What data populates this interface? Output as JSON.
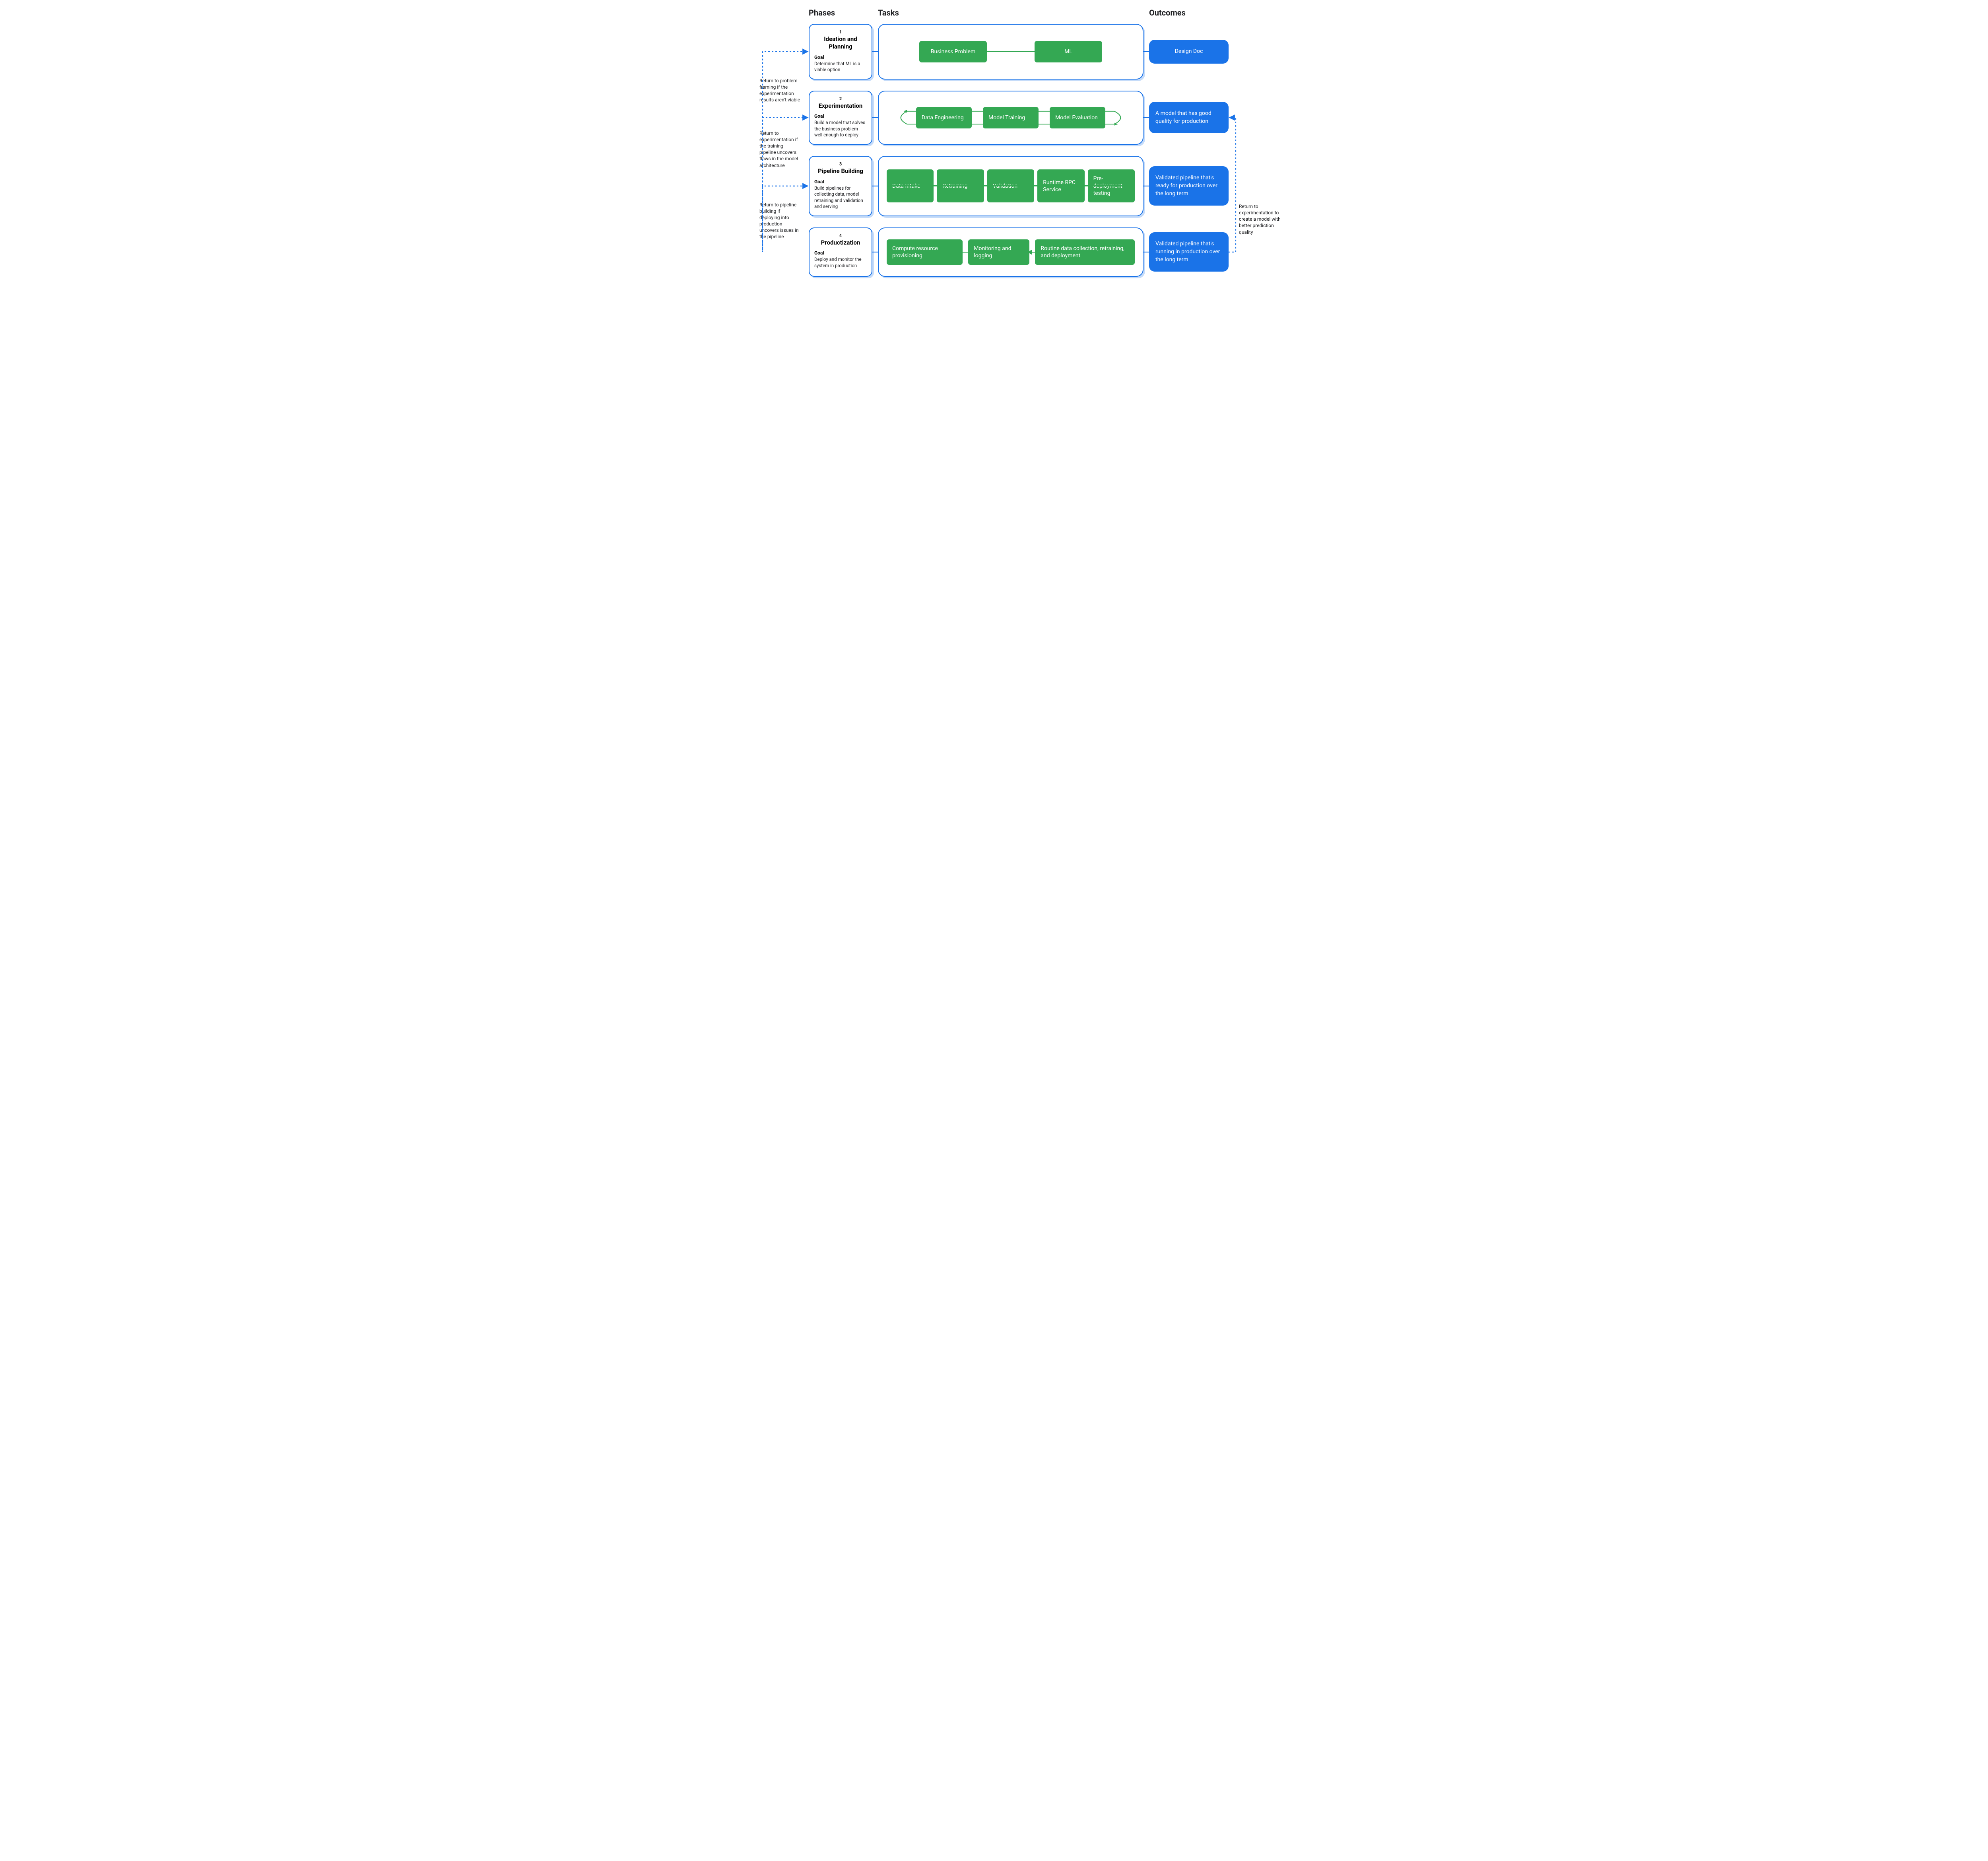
{
  "type": "flowchart",
  "colors": {
    "blue": "#1a73e8",
    "green": "#34a853",
    "text": "#202124",
    "background": "#ffffff",
    "shadow": "rgba(26,115,232,0.25)"
  },
  "fonts": {
    "heading_size": 20,
    "phase_title_size": 15,
    "body_size": 12,
    "task_size": 14,
    "outcome_size": 14
  },
  "headers": {
    "phases": "Phases",
    "tasks": "Tasks",
    "outcomes": "Outcomes"
  },
  "labels": {
    "goal": "Goal"
  },
  "rows": [
    {
      "num": "1",
      "title": "Ideation and Planning",
      "goal": "Determine that ML is a viable option",
      "tasks": [
        "Business Problem",
        "ML"
      ],
      "task_layout": "linear2",
      "outcome": "Design Doc",
      "feedback_left": "Return to problem framing if the experimentation results aren't viable"
    },
    {
      "num": "2",
      "title": "Experimentation",
      "goal": "Build a model that solves the business problem well enough to deploy",
      "tasks": [
        "Data Engineering",
        "Model Training",
        "Model Evaluation"
      ],
      "task_layout": "loop3",
      "outcome": "A model that has good quality for production",
      "feedback_left": "Return to experimentation if the training pipeline uncovers flaws in the model architecture"
    },
    {
      "num": "3",
      "title": "Pipeline Building",
      "goal": "Build pipelines for collecting data, model retraining and validation and serving",
      "tasks": [
        "Data Intake",
        "Retraining",
        "Validation",
        "Runtime RPC Service",
        "Pre-deployment testing"
      ],
      "task_layout": "linear5",
      "outcome": "Validated pipeline that's ready for production over the long term",
      "feedback_left": "Return to pipeline building if deploying into production uncovers issues in the pipeline"
    },
    {
      "num": "4",
      "title": "Productization",
      "goal": "Deploy and monitor the system in production",
      "tasks": [
        "Compute  resource provisioning",
        "Monitoring and logging",
        "Routine data collection, retraining, and deployment"
      ],
      "task_layout": "prod3",
      "outcome": "Validated pipeline that's running in production over the long term",
      "feedback_left": ""
    }
  ],
  "feedback_right": "Return to experimentation to create a model with better prediction quality"
}
